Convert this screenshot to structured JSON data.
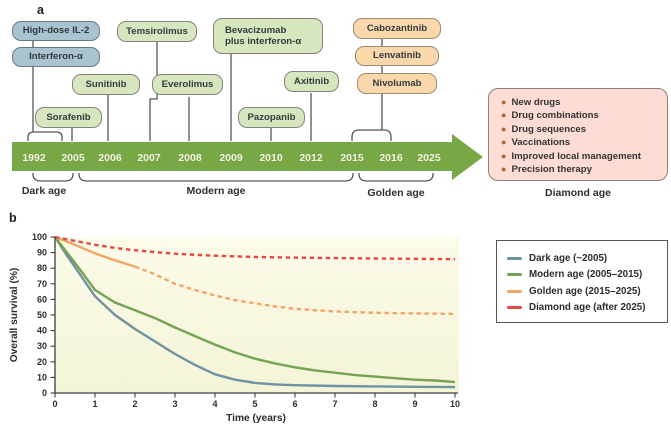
{
  "panel_a": {
    "label": "a",
    "drugs": [
      {
        "id": "high-dose-il2",
        "label": "High-dose IL-2",
        "era": "dark"
      },
      {
        "id": "interferon-a",
        "label": "Interferon-α",
        "era": "dark"
      },
      {
        "id": "sorafenib",
        "label": "Sorafenib",
        "era": "modern"
      },
      {
        "id": "sunitinib",
        "label": "Sunitinib",
        "era": "modern"
      },
      {
        "id": "temsirolimus",
        "label": "Temsirolimus",
        "era": "modern"
      },
      {
        "id": "everolimus",
        "label": "Everolimus",
        "era": "modern"
      },
      {
        "id": "bevacizumab",
        "label": "Bevacizumab\nplus interferon-α",
        "era": "modern"
      },
      {
        "id": "pazopanib",
        "label": "Pazopanib",
        "era": "modern"
      },
      {
        "id": "axitinib",
        "label": "Axitinib",
        "era": "modern"
      },
      {
        "id": "cabozantinib",
        "label": "Cabozantinib",
        "era": "golden"
      },
      {
        "id": "lenvatinib",
        "label": "Lenvatinib",
        "era": "golden"
      },
      {
        "id": "nivolumab",
        "label": "Nivolumab",
        "era": "golden"
      }
    ],
    "years": [
      "1992",
      "2005",
      "2006",
      "2007",
      "2008",
      "2009",
      "2010",
      "2012",
      "2015",
      "2016",
      "2025"
    ],
    "ages": [
      {
        "label": "Dark age"
      },
      {
        "label": "Modern age"
      },
      {
        "label": "Golden age"
      },
      {
        "label": "Diamond age"
      }
    ],
    "diamond_age": {
      "items": [
        "New drugs",
        "Drug combinations",
        "Drug sequences",
        "Vaccinations",
        "Improved local management",
        "Precision therapy"
      ]
    },
    "colors": {
      "arrow_green": "#78a746",
      "year_text": "#f3f1e2",
      "box_dark": "#a9c3cf",
      "box_modern": "#d8e6bf",
      "box_golden": "#fbd7ac",
      "box_diamond": "#fcdcd4",
      "connector": "#53585b"
    }
  },
  "panel_b": {
    "label": "b"
  },
  "chart_data": {
    "type": "line",
    "title": "",
    "xlabel": "Time (years)",
    "ylabel": "Overall survival (%)",
    "xlim": [
      0,
      10
    ],
    "ylim": [
      0,
      100
    ],
    "xticks": [
      0,
      1,
      2,
      3,
      4,
      5,
      6,
      7,
      8,
      9,
      10
    ],
    "yticks": [
      0,
      10,
      20,
      30,
      40,
      50,
      60,
      70,
      80,
      90,
      100
    ],
    "grid": false,
    "legend_position": "right",
    "plot_background": "#f8f8e1",
    "series": [
      {
        "id": "dark",
        "name": "Dark age (~2005)",
        "color": "#6f93a2",
        "style": "solid",
        "points": [
          [
            0,
            100
          ],
          [
            0.3,
            88
          ],
          [
            0.6,
            77
          ],
          [
            1,
            62
          ],
          [
            1.5,
            50
          ],
          [
            2,
            41
          ],
          [
            2.5,
            33
          ],
          [
            3,
            25
          ],
          [
            3.5,
            18
          ],
          [
            4,
            12
          ],
          [
            4.5,
            8.5
          ],
          [
            5,
            6.5
          ],
          [
            5.5,
            5.5
          ],
          [
            6,
            5
          ],
          [
            7,
            4.5
          ],
          [
            8,
            4.2
          ],
          [
            9,
            4
          ],
          [
            10,
            3.8
          ]
        ]
      },
      {
        "id": "modern",
        "name": "Modern age (2005–2015)",
        "color": "#75a254",
        "style": "solid",
        "points": [
          [
            0,
            100
          ],
          [
            0.3,
            90
          ],
          [
            0.6,
            80
          ],
          [
            1,
            66
          ],
          [
            1.5,
            58
          ],
          [
            2,
            53
          ],
          [
            2.5,
            48
          ],
          [
            3,
            42
          ],
          [
            3.5,
            36.5
          ],
          [
            4,
            31
          ],
          [
            4.5,
            26
          ],
          [
            5,
            22
          ],
          [
            5.5,
            19
          ],
          [
            6,
            16.5
          ],
          [
            6.5,
            14.5
          ],
          [
            7,
            13
          ],
          [
            7.5,
            11.5
          ],
          [
            8,
            10.5
          ],
          [
            8.5,
            9.5
          ],
          [
            9,
            8.5
          ],
          [
            9.5,
            8
          ],
          [
            10,
            7
          ]
        ]
      },
      {
        "id": "golden",
        "name": "Golden age (2015–2025)",
        "color": "#f2a469",
        "style": "solid-then-dashed",
        "segments": [
          {
            "dash": false,
            "points": [
              [
                0,
                100
              ],
              [
                0.5,
                95
              ],
              [
                1,
                89.5
              ],
              [
                1.5,
                85
              ],
              [
                2,
                81
              ]
            ]
          },
          {
            "dash": true,
            "points": [
              [
                2,
                81
              ],
              [
                2.5,
                76
              ],
              [
                3,
                70
              ],
              [
                3.5,
                66
              ],
              [
                4,
                62.5
              ],
              [
                4.5,
                59.5
              ],
              [
                5,
                57.5
              ],
              [
                5.5,
                55.5
              ],
              [
                6,
                54
              ],
              [
                6.5,
                53
              ],
              [
                7,
                52.3
              ],
              [
                7.5,
                51.8
              ],
              [
                8,
                51.4
              ],
              [
                9,
                51
              ],
              [
                10,
                50.7
              ]
            ]
          }
        ]
      },
      {
        "id": "diamond",
        "name": "Diamond age (after 2025)",
        "color": "#e04a45",
        "style": "dashed",
        "points": [
          [
            0,
            100
          ],
          [
            0.5,
            97.5
          ],
          [
            1,
            95
          ],
          [
            1.5,
            93
          ],
          [
            2,
            91.5
          ],
          [
            2.5,
            90.3
          ],
          [
            3,
            89.3
          ],
          [
            3.5,
            88.6
          ],
          [
            4,
            88
          ],
          [
            5,
            87.2
          ],
          [
            6,
            86.8
          ],
          [
            7,
            86.5
          ],
          [
            8,
            86.2
          ],
          [
            9,
            86
          ],
          [
            10,
            85.8
          ]
        ]
      }
    ]
  }
}
